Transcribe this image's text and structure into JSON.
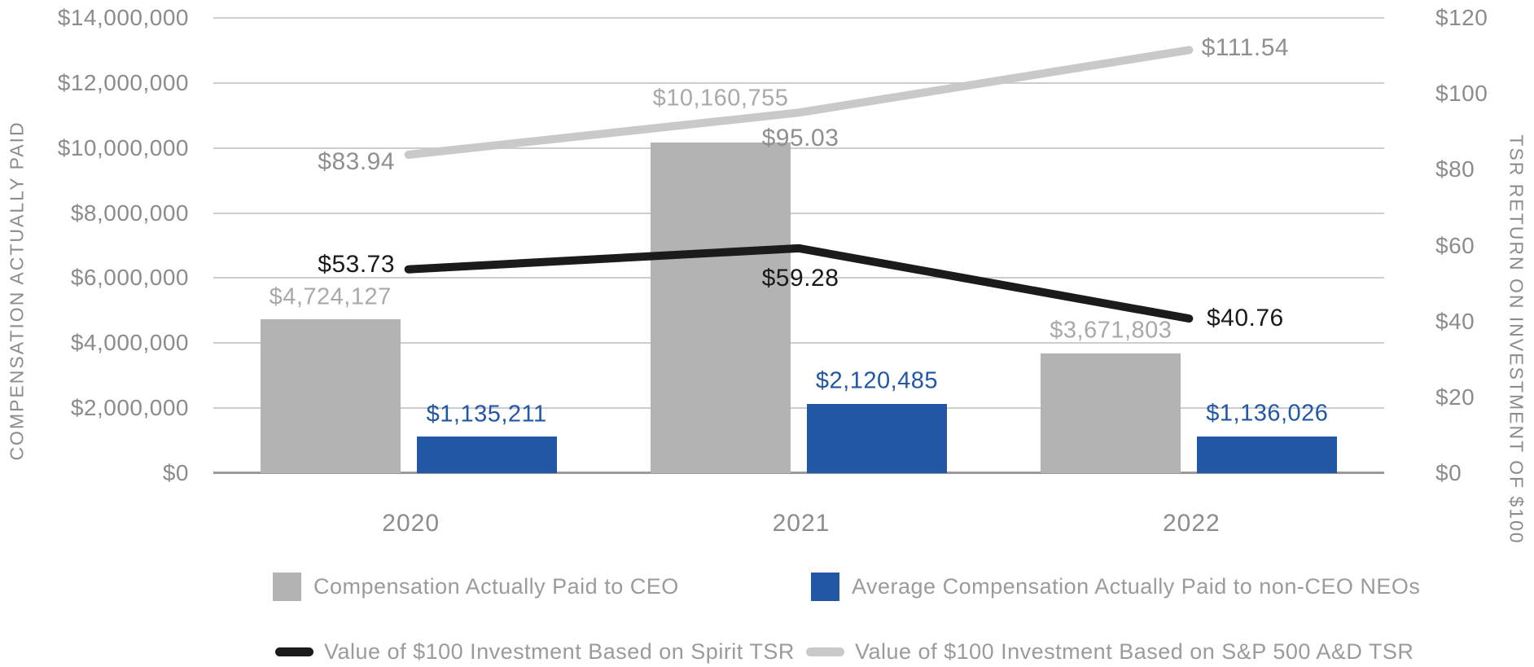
{
  "chart_data": {
    "type": "combo-bar-line",
    "title": "",
    "categories": [
      "2020",
      "2021",
      "2022"
    ],
    "series": [
      {
        "name": "Compensation Actually Paid to CEO",
        "type": "bar",
        "axis": "left",
        "color": "#b3b3b3",
        "label_color": "#a9a9a9",
        "values": [
          4724127,
          10160755,
          3671803
        ],
        "labels": [
          "$4,724,127",
          "$10,160,755",
          "$3,671,803"
        ]
      },
      {
        "name": "Average Compensation Actually Paid to non-CEO NEOs",
        "type": "bar",
        "axis": "left",
        "color": "#2257a5",
        "label_color": "#2257a5",
        "values": [
          1135211,
          2120485,
          1136026
        ],
        "labels": [
          "$1,135,211",
          "$2,120,485",
          "$1,136,026"
        ]
      },
      {
        "name": "Value of $100 Investment Based on Spirit TSR",
        "type": "line",
        "axis": "right",
        "color": "#1b1b1b",
        "label_color": "#1a1a1a",
        "values": [
          53.73,
          59.28,
          40.76
        ],
        "labels": [
          "$53.73",
          "$59.28",
          "$40.76"
        ]
      },
      {
        "name": "Value of $100 Investment Based on S&P 500 A&D TSR",
        "type": "line",
        "axis": "right",
        "color": "#c9c9c9",
        "label_color": "#8f8f8f",
        "values": [
          83.94,
          95.03,
          111.54
        ],
        "labels": [
          "$83.94",
          "$95.03",
          "$111.54"
        ]
      }
    ],
    "left_axis": {
      "title": "COMPENSATION ACTUALLY PAID",
      "min": 0,
      "max": 14000000,
      "step": 2000000,
      "tick_labels": [
        "$0",
        "$2,000,000",
        "$4,000,000",
        "$6,000,000",
        "$8,000,000",
        "$10,000,000",
        "$12,000,000",
        "$14,000,000"
      ]
    },
    "right_axis": {
      "title": "TSR RETURN ON INVESTMENT OF $100",
      "min": 0,
      "max": 120,
      "step": 20,
      "tick_labels": [
        "$0",
        "$20",
        "$40",
        "$60",
        "$80",
        "$100",
        "$120"
      ]
    },
    "grid": true,
    "legend_position": "bottom"
  }
}
